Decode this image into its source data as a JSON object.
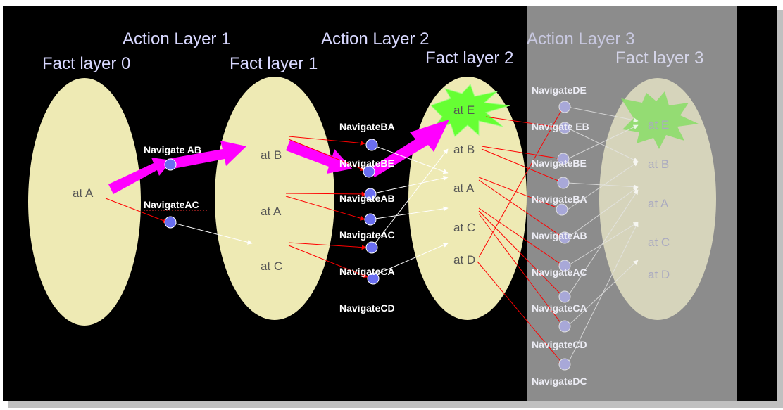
{
  "titles": {
    "fact_layer_0": "Fact layer 0",
    "action_layer_1": "Action Layer 1",
    "fact_layer_1": "Fact layer 1",
    "action_layer_2": "Action Layer 2",
    "fact_layer_2": "Fact layer 2",
    "action_layer_3": "Action Layer 3",
    "fact_layer_3": "Fact layer 3"
  },
  "fact_layer_0": {
    "facts": [
      "at  A"
    ]
  },
  "fact_layer_1": {
    "facts": [
      "at B",
      "at A",
      "at C"
    ]
  },
  "fact_layer_2": {
    "facts": [
      "at E",
      "at B",
      "at A",
      "at C",
      "at D"
    ]
  },
  "fact_layer_3": {
    "facts": [
      "at E",
      "at B",
      "at A",
      "at C",
      "at D"
    ]
  },
  "action_layer_1": {
    "actions": [
      "Navigate AB",
      "NavigateAC"
    ]
  },
  "action_layer_2": {
    "actions": [
      "NavigateBA",
      "NavigateBE",
      "NavigateAB",
      "NavigateAC",
      "NavigateCA",
      "NavigateCD"
    ]
  },
  "action_layer_3": {
    "actions": [
      "NavigateDE",
      "Navigate EB",
      "NavigateBE",
      "NavigateBA",
      "NavigateAB",
      "NavigateAC",
      "NavigateCA",
      "NavigateCD",
      "NavigateDC"
    ]
  },
  "colors": {
    "background": "#000000",
    "frame_shadow": "#c0c0c0",
    "fact_ellipse": "#eeeab4",
    "faded_panel": "#8c8c8c",
    "action_node": "#6a6ef0",
    "precondition_edge": "#ff0000",
    "effect_edge": "#ffffff",
    "plan_arrow": "#ff00ff",
    "goal_burst": "#66ff33",
    "title_text": "#d8d8ff",
    "action_text": "#ffffff"
  }
}
